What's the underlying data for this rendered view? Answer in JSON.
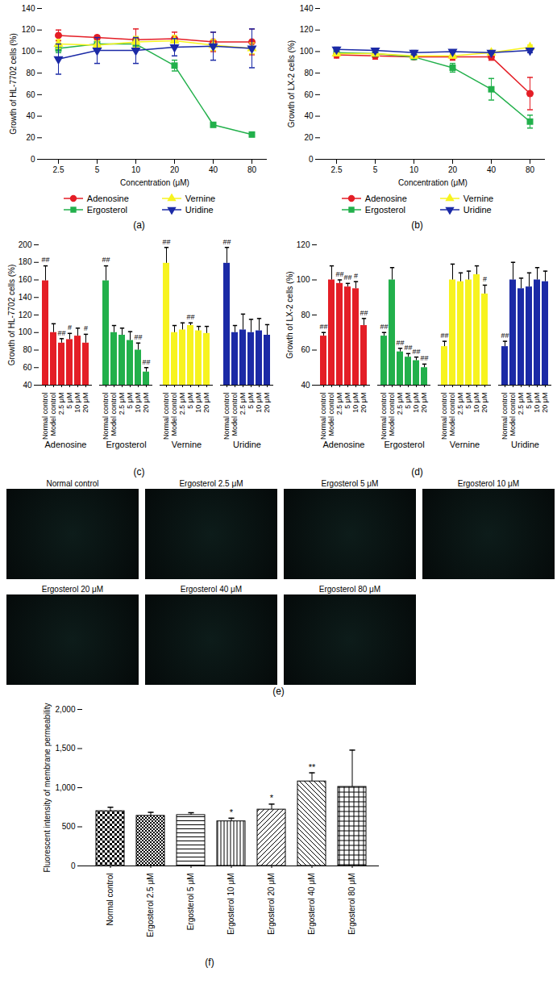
{
  "chart_data": [
    {
      "type": "line",
      "title": "(a)",
      "x_label": "Concentration (μM)",
      "y_label": "Growth of HL-7702 cells (%)",
      "categories": [
        "2.5",
        "5",
        "10",
        "20",
        "40",
        "80"
      ],
      "ylim": [
        0,
        140
      ],
      "yticks": [
        0,
        20,
        40,
        60,
        80,
        100,
        120,
        140
      ],
      "legend": "bottom",
      "series": [
        {
          "name": "Adenosine",
          "color": "#e41e26",
          "marker": "circle",
          "values": [
            115,
            113,
            111,
            112,
            109,
            109
          ],
          "errors": [
            5,
            2,
            10,
            6,
            9,
            12
          ]
        },
        {
          "name": "Ergosterol",
          "color": "#22b04b",
          "marker": "square",
          "values": [
            103,
            107,
            107,
            87,
            32,
            23
          ],
          "errors": [
            4,
            3,
            4,
            5,
            2,
            2
          ]
        },
        {
          "name": "Vernine",
          "color": "#f7f31f",
          "marker": "triangle-up",
          "values": [
            107,
            106,
            109,
            110,
            106,
            103
          ],
          "errors": [
            4,
            4,
            5,
            5,
            5,
            5
          ]
        },
        {
          "name": "Uridine",
          "color": "#1b2aa6",
          "marker": "triangle-down",
          "values": [
            93,
            101,
            101,
            104,
            105,
            103
          ],
          "errors": [
            14,
            12,
            12,
            8,
            13,
            18
          ]
        }
      ]
    },
    {
      "type": "line",
      "title": "(b)",
      "x_label": "Concentration (μM)",
      "y_label": "Growth of LX-2 cells (%)",
      "categories": [
        "2.5",
        "5",
        "10",
        "20",
        "40",
        "80"
      ],
      "ylim": [
        0,
        140
      ],
      "yticks": [
        0,
        20,
        40,
        60,
        80,
        100,
        120,
        140
      ],
      "legend": "bottom",
      "series": [
        {
          "name": "Adenosine",
          "color": "#e41e26",
          "marker": "circle",
          "values": [
            97,
            96,
            95,
            95,
            95,
            61
          ],
          "errors": [
            3,
            3,
            2,
            3,
            3,
            15
          ]
        },
        {
          "name": "Ergosterol",
          "color": "#22b04b",
          "marker": "square",
          "values": [
            99,
            98,
            95,
            85,
            65,
            35
          ],
          "errors": [
            2,
            2,
            2,
            4,
            10,
            6
          ]
        },
        {
          "name": "Vernine",
          "color": "#f7f31f",
          "marker": "triangle-up",
          "values": [
            98,
            98,
            96,
            96,
            99,
            104
          ],
          "errors": [
            2,
            2,
            2,
            2,
            2,
            2
          ]
        },
        {
          "name": "Uridine",
          "color": "#1b2aa6",
          "marker": "triangle-down",
          "values": [
            102,
            101,
            99,
            100,
            99,
            101
          ],
          "errors": [
            2,
            2,
            2,
            1,
            1,
            2
          ]
        }
      ]
    },
    {
      "type": "bar",
      "title": "(c)",
      "y_label": "Growth of HL-7702 cells (%)",
      "categories": [
        "Normal control",
        "Model control",
        "2.5 μM",
        "5 μM",
        "10 μM",
        "20 μM"
      ],
      "ylim": [
        40,
        200
      ],
      "yticks": [
        40,
        60,
        80,
        100,
        120,
        140,
        160,
        180,
        200
      ],
      "series": [
        {
          "name": "Adenosine",
          "color": "#e41e26",
          "values": [
            159,
            100,
            88,
            92,
            96,
            88
          ],
          "errors": [
            17,
            10,
            5,
            7,
            9,
            10
          ],
          "annotations": [
            "##",
            null,
            "##",
            "#",
            null,
            "#"
          ]
        },
        {
          "name": "Ergosterol",
          "color": "#22b04b",
          "values": [
            159,
            100,
            97,
            91,
            80,
            55
          ],
          "errors": [
            17,
            8,
            8,
            10,
            8,
            5
          ],
          "annotations": [
            "##",
            null,
            null,
            null,
            "##",
            "##"
          ]
        },
        {
          "name": "Vernine",
          "color": "#f7f31f",
          "values": [
            179,
            100,
            103,
            108,
            102,
            99
          ],
          "errors": [
            18,
            8,
            8,
            3,
            5,
            8
          ],
          "annotations": [
            "##",
            null,
            null,
            "##",
            null,
            null
          ]
        },
        {
          "name": "Uridine",
          "color": "#1b2aa6",
          "values": [
            179,
            100,
            103,
            100,
            102,
            97
          ],
          "errors": [
            18,
            8,
            18,
            15,
            14,
            12
          ],
          "annotations": [
            "##",
            null,
            null,
            null,
            null,
            null
          ]
        }
      ]
    },
    {
      "type": "bar",
      "title": "(d)",
      "y_label": "Growth of LX-2 cells (%)",
      "categories": [
        "Normal control",
        "Model control",
        "2.5 μM",
        "5 μM",
        "10 μM",
        "20 μM"
      ],
      "ylim": [
        40,
        120
      ],
      "yticks": [
        40,
        60,
        80,
        100,
        120
      ],
      "series": [
        {
          "name": "Adenosine",
          "color": "#e41e26",
          "values": [
            68,
            100,
            98,
            96,
            95,
            74
          ],
          "errors": [
            2,
            8,
            2,
            2,
            4,
            4
          ],
          "annotations": [
            "##",
            null,
            "##",
            "##",
            "#",
            "##"
          ]
        },
        {
          "name": "Ergosterol",
          "color": "#22b04b",
          "values": [
            68,
            100,
            59,
            56,
            54,
            50
          ],
          "errors": [
            2,
            7,
            2,
            2,
            2,
            2
          ],
          "annotations": [
            "##",
            null,
            "##",
            "##",
            "##",
            "##"
          ]
        },
        {
          "name": "Vernine",
          "color": "#f7f31f",
          "values": [
            62,
            100,
            99,
            100,
            103,
            92
          ],
          "errors": [
            3,
            9,
            5,
            5,
            5,
            5
          ],
          "annotations": [
            "##",
            null,
            null,
            null,
            null,
            "#"
          ]
        },
        {
          "name": "Uridine",
          "color": "#1b2aa6",
          "values": [
            62,
            100,
            95,
            96,
            100,
            99
          ],
          "errors": [
            3,
            10,
            6,
            8,
            7,
            6
          ],
          "annotations": [
            "##",
            null,
            null,
            null,
            null,
            null
          ]
        }
      ]
    },
    {
      "type": "bar",
      "title": "(f)",
      "y_label": "Fluorescent intensity of membrane permeability",
      "categories": [
        "Normal control",
        "Ergosterol 2.5 μM",
        "Ergosterol 5 μM",
        "Ergosterol 10 μM",
        "Ergosterol 20 μM",
        "Ergosterol 40 μM",
        "Ergosterol 80 μM"
      ],
      "values": [
        700,
        640,
        650,
        570,
        720,
        1080,
        1010
      ],
      "errors": [
        50,
        45,
        30,
        40,
        70,
        110,
        470
      ],
      "annotations": [
        null,
        null,
        null,
        "*",
        "*",
        "**",
        null
      ],
      "color": "#000000",
      "ylim": [
        0,
        2000
      ],
      "yticks": [
        0,
        500,
        1000,
        1500,
        2000
      ]
    }
  ],
  "image_panel": {
    "title": "(e)",
    "images": [
      "Normal control",
      "Ergosterol 2.5 μM",
      "Ergosterol 5 μM",
      "Ergosterol 10 μM",
      "Ergosterol 20 μM",
      "Ergosterol 40 μM",
      "Ergosterol 80 μM"
    ]
  }
}
